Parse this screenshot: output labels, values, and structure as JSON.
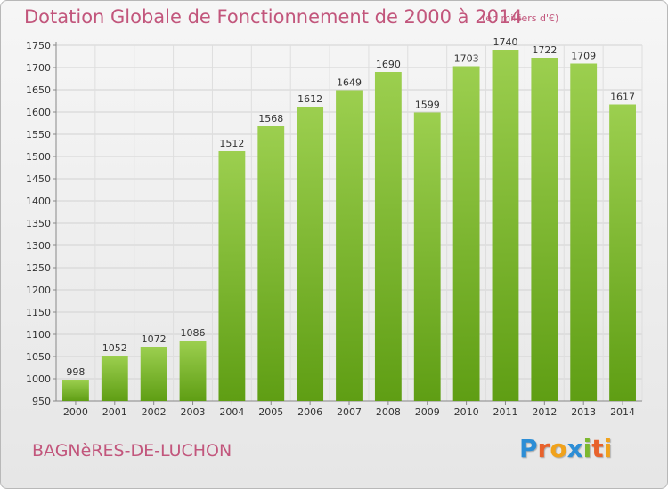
{
  "chart_data": {
    "type": "bar",
    "title": "Dotation Globale de Fonctionnement de 2000 à 2014",
    "subtitle": "(en milliers d'€)",
    "categories": [
      "2000",
      "2001",
      "2002",
      "2003",
      "2004",
      "2005",
      "2006",
      "2007",
      "2008",
      "2009",
      "2010",
      "2011",
      "2012",
      "2013",
      "2014"
    ],
    "values": [
      998,
      1052,
      1072,
      1086,
      1512,
      1568,
      1612,
      1649,
      1690,
      1599,
      1703,
      1740,
      1722,
      1709,
      1617
    ],
    "value_labels": [
      "998",
      "1052",
      "1072",
      "1086",
      "1512",
      "1568",
      "1612",
      "1649",
      "1690",
      "1599",
      "1703",
      "1740",
      "1722",
      "1709",
      "1617"
    ],
    "ylim": [
      950,
      1750
    ],
    "yticks": [
      950,
      1000,
      1050,
      1100,
      1150,
      1200,
      1250,
      1300,
      1350,
      1400,
      1450,
      1500,
      1550,
      1600,
      1650,
      1700,
      1750
    ],
    "ytick_labels": [
      "950",
      "1000",
      "1050",
      "1100",
      "1150",
      "1200",
      "1250",
      "1300",
      "1350",
      "1400",
      "1450",
      "1500",
      "1550",
      "1600",
      "1650",
      "1700",
      "1750"
    ],
    "grid": true,
    "legend": "none",
    "bar_color": "#7fbf2e"
  },
  "footer": {
    "commune": "BAGNèRES-DE-LUCHON",
    "brand_letters": [
      "P",
      "r",
      "o",
      "x",
      "i",
      "t",
      "i"
    ],
    "brand_colors": [
      "#2d8ed6",
      "#e8622c",
      "#f0a21c",
      "#2d8ed6",
      "#7cb82f",
      "#e8622c",
      "#f0a21c"
    ]
  }
}
